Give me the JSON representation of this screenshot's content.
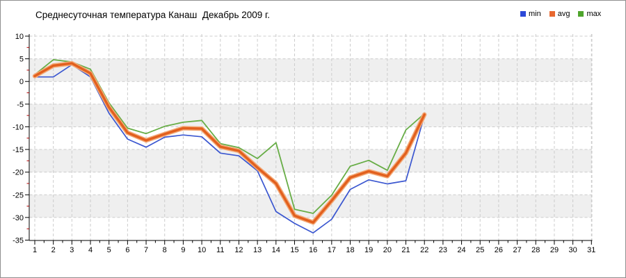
{
  "chart_data": {
    "type": "line",
    "title": "Среднесуточная температура Канаш  Декабрь 2009 г.",
    "xlabel": "",
    "ylabel": "",
    "xlim": [
      1,
      31
    ],
    "ylim": [
      -35,
      10
    ],
    "xticks": [
      1,
      2,
      3,
      4,
      5,
      6,
      7,
      8,
      9,
      10,
      11,
      12,
      13,
      14,
      15,
      16,
      17,
      18,
      19,
      20,
      21,
      22,
      23,
      24,
      25,
      26,
      27,
      28,
      29,
      30,
      31
    ],
    "yticks": [
      10,
      5,
      0,
      -5,
      -10,
      -15,
      -20,
      -25,
      -30,
      -35
    ],
    "grid": "dashed-both-axes",
    "plot_bands": "alternating light-gray horizontal bands every 5 degrees",
    "legend_position": "top-right",
    "x": [
      1,
      2,
      3,
      4,
      5,
      6,
      7,
      8,
      9,
      10,
      11,
      12,
      13,
      14,
      15,
      16,
      17,
      18,
      19,
      20,
      21,
      22
    ],
    "series": [
      {
        "name": "min",
        "color": "#3b57d0",
        "values": [
          1.0,
          1.0,
          3.7,
          1.0,
          -7.0,
          -12.7,
          -14.5,
          -12.3,
          -11.8,
          -12.2,
          -15.8,
          -16.4,
          -19.7,
          -28.7,
          -31.3,
          -33.4,
          -30.4,
          -23.8,
          -21.7,
          -22.6,
          -21.9,
          -7.5
        ]
      },
      {
        "name": "avg",
        "color": "#e2601e",
        "values": [
          1.2,
          3.5,
          4.0,
          1.8,
          -5.7,
          -11.3,
          -13.0,
          -11.6,
          -10.3,
          -10.4,
          -14.4,
          -15.3,
          -19.0,
          -22.5,
          -29.6,
          -31.1,
          -26.3,
          -21.2,
          -19.8,
          -20.9,
          -15.8,
          -7.3
        ]
      },
      {
        "name": "max",
        "color": "#67ad46",
        "values": [
          1.5,
          4.8,
          4.3,
          2.7,
          -4.7,
          -10.3,
          -11.5,
          -9.9,
          -9.0,
          -8.6,
          -13.7,
          -14.6,
          -17.0,
          -13.5,
          -28.2,
          -29.1,
          -25.1,
          -18.7,
          -17.4,
          -19.6,
          -10.7,
          -7.1
        ]
      }
    ]
  },
  "legend": [
    {
      "label": "min",
      "swatch": "#2c49d8"
    },
    {
      "label": "avg",
      "swatch": "#e8682f"
    },
    {
      "label": "max",
      "swatch": "#4ea52c"
    }
  ],
  "style_colors": {
    "band_gray": "#efefef",
    "gridline": "#cccccc",
    "axis": "#000000",
    "minor_tick_y": "#b00000",
    "avg_halo": "#f3a977"
  }
}
